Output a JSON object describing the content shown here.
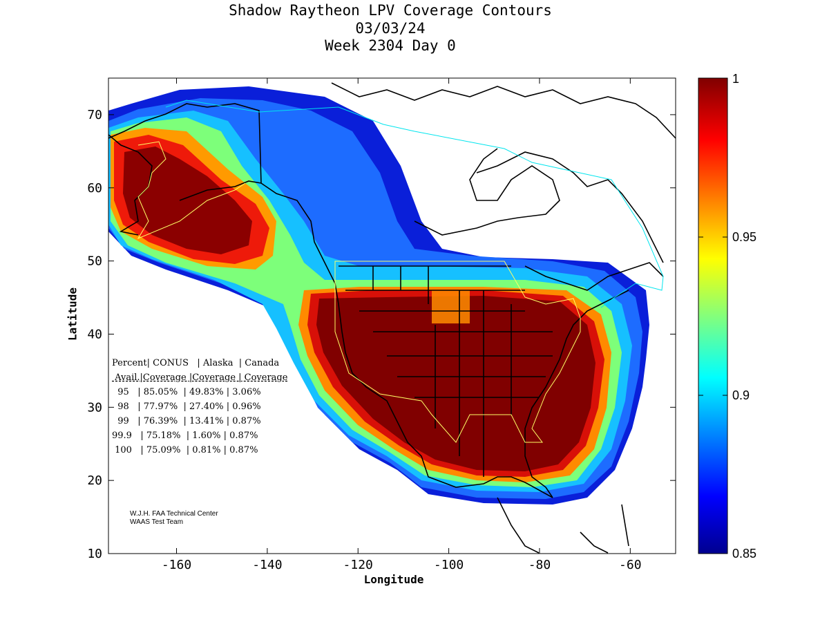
{
  "title": {
    "line1": "Shadow Raytheon LPV Coverage Contours",
    "line2": "03/03/24",
    "line3": "Week 2304 Day 0"
  },
  "axes": {
    "xlabel": "Longitude",
    "ylabel": "Latitude",
    "xticks": [
      "-160",
      "-140",
      "-120",
      "-100",
      "-80",
      "-60"
    ],
    "yticks": [
      "70",
      "60",
      "50",
      "40",
      "30",
      "20",
      "10"
    ],
    "xrange": [
      -175,
      -50
    ],
    "yrange": [
      10,
      75
    ]
  },
  "colorbar": {
    "ticks": [
      "1",
      "0.95",
      "0.9",
      "0.85"
    ],
    "range": [
      0.85,
      1
    ],
    "colormap": "jet"
  },
  "coverage_table": {
    "header1": "Percent| CONUS   | Alaska  | Canada",
    "header2": " Avail.|Coverage |Coverage | Coverage",
    "rows": [
      "  95   | 85.05%  | 49.83% | 3.06%",
      "  98   | 77.97%  | 27.40% | 0.96%",
      "  99   | 76.39%  | 13.41% | 0.87%",
      "99.9   | 75.18%  | 1.60% | 0.87%",
      " 100   | 75.09%  | 0.81% | 0.87%"
    ]
  },
  "credit": {
    "line1": "W.J.H. FAA Technical Center",
    "line2": "WAAS Test Team"
  },
  "colors": {
    "max": "#800000",
    "red": "#ff0000",
    "yellow": "#ffff00",
    "cyan": "#00ffff",
    "blue": "#0000ff",
    "min": "#00008f",
    "boundary_cyan": "#00e5ee",
    "boundary_yellow": "#ffff66"
  }
}
